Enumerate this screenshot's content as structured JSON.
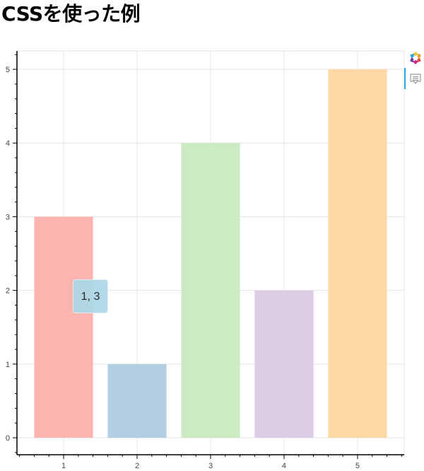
{
  "page": {
    "title": "CSSを使った例"
  },
  "toolbar": {
    "logo_icon": "bokeh-logo-icon",
    "hover_tool_icon": "hover-tooltip-icon",
    "active_color": "#26aae1"
  },
  "tooltip": {
    "text": "1, 3",
    "background": "#add8e6"
  },
  "chart_data": {
    "type": "bar",
    "title": "CSSを使った例",
    "categories": [
      1,
      2,
      3,
      4,
      5
    ],
    "x": [
      1,
      2,
      3,
      4,
      5
    ],
    "values": [
      3,
      1,
      4,
      2,
      5
    ],
    "colors": [
      "#fbb4ae",
      "#b3cde3",
      "#ccebc5",
      "#decbe4",
      "#fed9a6"
    ],
    "bar_width": 0.8,
    "xlabel": "",
    "ylabel": "",
    "xlim": [
      0.365,
      5.635
    ],
    "ylim": [
      -0.23,
      5.25
    ],
    "x_ticks": [
      1,
      2,
      3,
      4,
      5
    ],
    "x_tick_labels": [
      "1",
      "2",
      "3",
      "4",
      "5"
    ],
    "y_ticks": [
      0,
      1,
      2,
      3,
      4,
      5
    ],
    "y_tick_labels": [
      "0",
      "1",
      "2",
      "3",
      "4",
      "5"
    ],
    "grid": true,
    "legend": null
  }
}
